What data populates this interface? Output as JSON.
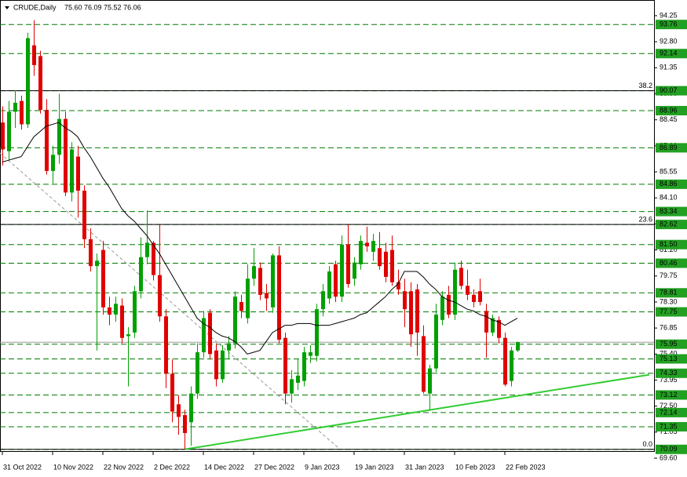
{
  "chart_data": {
    "type": "candlestick",
    "symbol": "CRUDE,Daily",
    "ohlc_header": "75.60 76.09 75.52 76.06",
    "up_color": "#00a000",
    "down_color": "#e00000",
    "ma_color": "#000000",
    "level_color": "#007a00",
    "level_label_color": "#22a022",
    "categories": [
      "31 Oct 2022",
      null,
      null,
      null,
      null,
      null,
      null,
      null,
      "10 Nov 2022",
      null,
      null,
      null,
      null,
      null,
      null,
      null,
      "22 Nov 2022",
      null,
      null,
      null,
      null,
      null,
      null,
      null,
      "2 Dec 2022",
      null,
      null,
      null,
      null,
      null,
      null,
      null,
      "14 Dec 2022",
      null,
      null,
      null,
      null,
      null,
      null,
      null,
      "27 Dec 2022",
      null,
      null,
      null,
      null,
      null,
      null,
      null,
      "9 Jan 2023",
      null,
      null,
      null,
      null,
      null,
      null,
      null,
      "19 Jan 2023",
      null,
      null,
      null,
      null,
      null,
      null,
      null,
      "31 Jan 2023",
      null,
      null,
      null,
      null,
      null,
      null,
      null,
      "10 Feb 2023",
      null,
      null,
      null,
      null,
      null,
      null,
      null,
      "22 Feb 2023",
      null,
      null
    ],
    "candles": [
      [
        88.3,
        89.2,
        85.9,
        86.8
      ],
      [
        86.7,
        89.5,
        86.2,
        88.9
      ],
      [
        88.9,
        90.1,
        88.0,
        89.4
      ],
      [
        89.5,
        89.8,
        87.9,
        88.2
      ],
      [
        88.2,
        93.3,
        88.0,
        93.0
      ],
      [
        92.6,
        94.0,
        90.9,
        91.5
      ],
      [
        92.0,
        92.3,
        88.8,
        89.0
      ],
      [
        89.0,
        89.6,
        85.4,
        85.6
      ],
      [
        85.6,
        87.0,
        84.9,
        86.5
      ],
      [
        86.5,
        89.9,
        86.0,
        88.5
      ],
      [
        88.5,
        88.9,
        84.2,
        84.4
      ],
      [
        84.4,
        87.2,
        83.9,
        86.8
      ],
      [
        86.4,
        87.0,
        83.0,
        84.5
      ],
      [
        84.5,
        84.8,
        81.3,
        81.8
      ],
      [
        81.8,
        82.4,
        80.0,
        80.3
      ],
      [
        80.3,
        81.0,
        75.6,
        80.6
      ],
      [
        81.2,
        81.7,
        77.6,
        78.0
      ],
      [
        78.0,
        78.6,
        77.0,
        77.6
      ],
      [
        77.6,
        78.6,
        77.2,
        78.2
      ],
      [
        78.1,
        78.5,
        76.0,
        76.3
      ],
      [
        76.4,
        76.9,
        73.6,
        76.5
      ],
      [
        76.6,
        79.2,
        76.3,
        78.9
      ],
      [
        78.9,
        81.9,
        78.5,
        80.8
      ],
      [
        80.8,
        83.4,
        80.4,
        81.6
      ],
      [
        81.6,
        81.7,
        79.5,
        79.8
      ],
      [
        79.8,
        82.6,
        77.2,
        77.5
      ],
      [
        77.5,
        77.9,
        73.5,
        74.3
      ],
      [
        74.3,
        75.1,
        71.6,
        72.2
      ],
      [
        72.6,
        73.1,
        70.9,
        71.9
      ],
      [
        72.0,
        72.3,
        70.09,
        71.0
      ],
      [
        71.6,
        73.6,
        70.3,
        73.2
      ],
      [
        73.2,
        76.0,
        72.9,
        75.5
      ],
      [
        75.5,
        77.8,
        75.2,
        77.4
      ],
      [
        77.7,
        77.9,
        75.1,
        75.4
      ],
      [
        75.6,
        76.0,
        73.6,
        74.0
      ],
      [
        74.0,
        75.9,
        73.8,
        75.6
      ],
      [
        75.6,
        76.4,
        75.1,
        76.0
      ],
      [
        76.0,
        78.9,
        75.7,
        78.6
      ],
      [
        78.3,
        78.7,
        77.4,
        77.8
      ],
      [
        77.4,
        80.4,
        77.1,
        79.6
      ],
      [
        79.6,
        81.3,
        79.2,
        80.3
      ],
      [
        80.2,
        80.5,
        78.4,
        78.7
      ],
      [
        78.8,
        79.3,
        77.8,
        78.5
      ],
      [
        78.0,
        81.0,
        77.7,
        80.9
      ],
      [
        80.9,
        81.4,
        76.0,
        76.2
      ],
      [
        76.3,
        76.6,
        72.6,
        73.2
      ],
      [
        73.2,
        74.5,
        72.7,
        74.0
      ],
      [
        73.8,
        75.1,
        73.4,
        74.2
      ],
      [
        73.9,
        75.8,
        73.6,
        75.5
      ],
      [
        75.3,
        75.9,
        74.9,
        75.5
      ],
      [
        75.3,
        78.2,
        75.0,
        77.9
      ],
      [
        77.9,
        79.3,
        77.5,
        78.9
      ],
      [
        78.5,
        80.3,
        78.2,
        80.0
      ],
      [
        80.4,
        80.6,
        78.3,
        78.6
      ],
      [
        78.6,
        82.0,
        78.3,
        81.5
      ],
      [
        81.5,
        82.6,
        79.1,
        79.3
      ],
      [
        79.6,
        80.8,
        79.2,
        80.5
      ],
      [
        80.4,
        82.0,
        80.1,
        81.7
      ],
      [
        81.6,
        82.5,
        81.1,
        81.4
      ],
      [
        81.1,
        82.1,
        80.6,
        81.7
      ],
      [
        81.3,
        82.2,
        80.1,
        80.3
      ],
      [
        81.1,
        81.6,
        79.4,
        79.7
      ],
      [
        81.2,
        82.0,
        79.2,
        79.4
      ],
      [
        79.4,
        80.1,
        78.7,
        79.0
      ],
      [
        78.9,
        79.6,
        76.9,
        77.9
      ],
      [
        78.9,
        79.4,
        75.8,
        76.5
      ],
      [
        79.0,
        79.3,
        75.3,
        76.6
      ],
      [
        76.4,
        77.0,
        73.2,
        73.3
      ],
      [
        73.2,
        74.8,
        72.3,
        74.6
      ],
      [
        74.6,
        78.2,
        74.4,
        77.6
      ],
      [
        77.3,
        78.9,
        77.0,
        78.6
      ],
      [
        78.7,
        79.2,
        77.4,
        77.6
      ],
      [
        77.6,
        80.5,
        77.3,
        80.1
      ],
      [
        80.2,
        80.6,
        79.0,
        79.2
      ],
      [
        79.2,
        80.1,
        78.4,
        78.7
      ],
      [
        78.7,
        79.0,
        78.0,
        78.3
      ],
      [
        78.9,
        79.6,
        78.1,
        78.3
      ],
      [
        77.8,
        78.2,
        75.2,
        76.6
      ],
      [
        76.6,
        77.6,
        76.4,
        77.4
      ],
      [
        77.3,
        77.5,
        76.0,
        76.3
      ],
      [
        76.3,
        76.6,
        73.6,
        73.7
      ],
      [
        73.9,
        75.8,
        73.6,
        75.6
      ],
      [
        75.6,
        76.09,
        75.52,
        76.06
      ]
    ],
    "ma": [
      86.1,
      86.2,
      86.3,
      86.4,
      86.95,
      87.5,
      87.8,
      88.1,
      88.2,
      88.3,
      88.0,
      87.8,
      87.5,
      86.9,
      86.4,
      85.8,
      85.2,
      84.7,
      84.1,
      83.5,
      83.1,
      82.8,
      82.4,
      82.0,
      81.5,
      81.0,
      80.4,
      79.8,
      79.2,
      78.6,
      78.0,
      77.4,
      77.1,
      76.9,
      76.6,
      76.4,
      76.3,
      76.1,
      75.8,
      75.4,
      75.5,
      75.6,
      76.1,
      76.6,
      76.8,
      77.0,
      77.0,
      77.1,
      77.1,
      77.1,
      77.0,
      77.0,
      77.0,
      77.1,
      77.2,
      77.3,
      77.4,
      77.6,
      77.7,
      78.0,
      78.3,
      78.6,
      79.0,
      79.3,
      80.0,
      80.0,
      80.0,
      79.7,
      79.3,
      79.0,
      78.6,
      78.4,
      78.3,
      78.1,
      77.9,
      77.8,
      77.6,
      77.5,
      77.3,
      77.2,
      77.0,
      77.2,
      77.4
    ],
    "ylim": [
      69.6,
      94.25
    ],
    "yticks": [
      94.25,
      {
        "value": 92.8,
        "label": "92.80"
      },
      91.35,
      {
        "value": 89.9,
        "label": "89.90"
      },
      88.45,
      {
        "value": 87.0,
        "label": "87.00"
      },
      85.55,
      {
        "value": 84.1,
        "label": "84.10"
      },
      82.65,
      {
        "value": 81.2,
        "label": "81.20"
      },
      79.75,
      {
        "value": 78.3,
        "label": "78.30"
      },
      76.85,
      {
        "value": 75.4,
        "label": "75.40"
      },
      73.95,
      {
        "value": 72.5,
        "label": "72.50"
      },
      71.05,
      {
        "value": 69.6,
        "label": "69.60"
      }
    ],
    "levels": [
      93.76,
      92.14,
      90.07,
      88.96,
      86.89,
      84.86,
      83.34,
      82.62,
      {
        "value": 81.5,
        "label": "81.50"
      },
      80.46,
      78.81,
      77.75,
      75.95,
      75.13,
      74.33,
      73.12,
      72.14,
      71.35,
      70.09
    ],
    "fib_levels": [
      {
        "price": 90.07,
        "label": "38.2"
      },
      {
        "price": 82.62,
        "label": "23.6"
      },
      {
        "price": 70.09,
        "label": "0.0"
      }
    ],
    "trendlines": [
      {
        "color": "#33cc33",
        "from": [
          29,
          70.09
        ],
        "to": [
          103,
          74.25
        ]
      },
      {
        "color": "#999999",
        "dashed": true,
        "from": [
          -0.4,
          86.6
        ],
        "to": [
          53.4,
          70.2
        ]
      }
    ]
  }
}
